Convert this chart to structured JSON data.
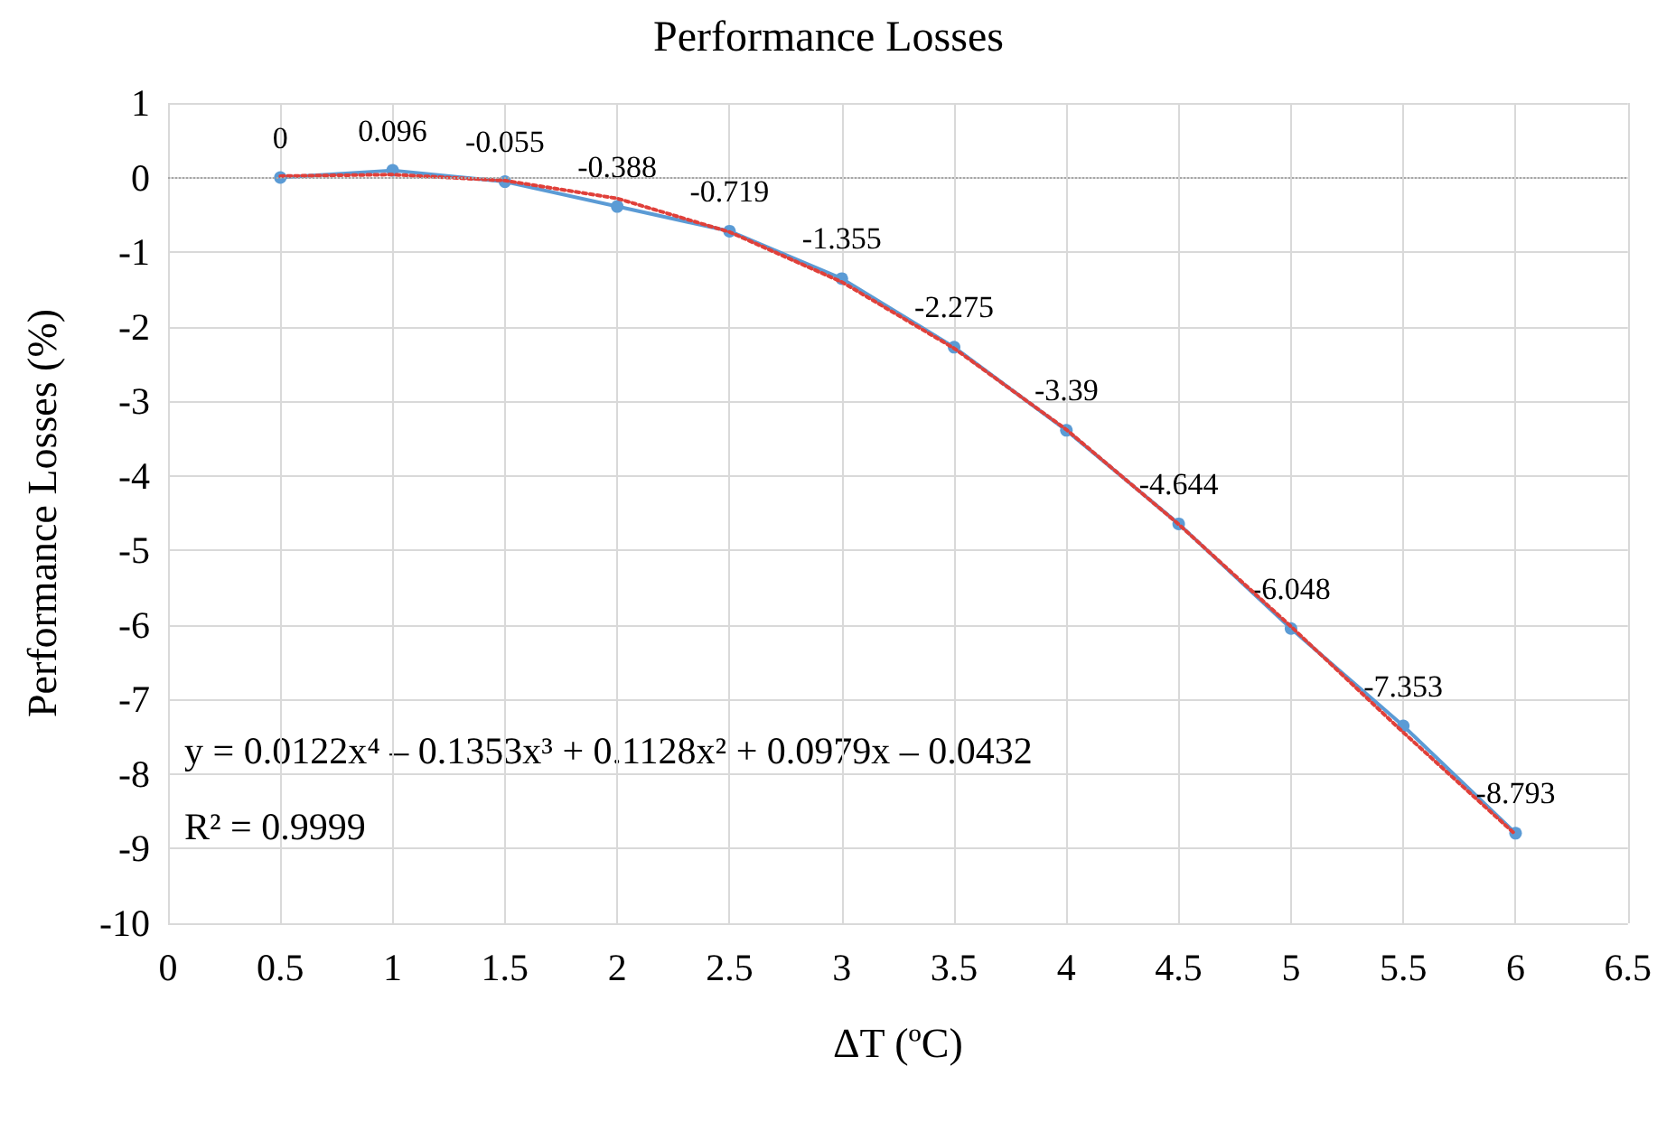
{
  "chart_data": {
    "type": "line",
    "title": "Performance Losses",
    "xlabel": "ΔT (ºC)",
    "ylabel": "Performance Losses (%)",
    "x": [
      0.5,
      1,
      1.5,
      2,
      2.5,
      3,
      3.5,
      4,
      4.5,
      5,
      5.5,
      6
    ],
    "series": [
      {
        "color": "#5b9bd5",
        "values": [
          0,
          0.096,
          -0.055,
          -0.388,
          -0.719,
          -1.355,
          -2.275,
          -3.39,
          -4.644,
          -6.048,
          -7.353,
          -8.793
        ],
        "value_labels": [
          "0",
          "0.096",
          "-0.055",
          "-0.388",
          "-0.719",
          "-1.355",
          "-2.275",
          "-3.39",
          "-4.644",
          "-6.048",
          "-7.353",
          "-8.793"
        ],
        "marker": "circle",
        "line_style": "solid"
      },
      {
        "type": "line",
        "color": "#e0403a",
        "x": [
          0.5,
          1,
          1.5,
          2,
          2.5,
          3,
          3.5,
          4,
          4.5,
          5,
          5.5,
          6
        ],
        "values": [
          0.02,
          0.04,
          -0.04,
          -0.28,
          -0.73,
          -1.4,
          -2.29,
          -3.38,
          -4.65,
          -6.02,
          -7.44,
          -8.81
        ],
        "marker": "none",
        "line_style": "dotted"
      }
    ],
    "xlim": [
      0,
      6.5
    ],
    "xticks": [
      0,
      0.5,
      1,
      1.5,
      2,
      2.5,
      3,
      3.5,
      4,
      4.5,
      5,
      5.5,
      6,
      6.5
    ],
    "ylim": [
      -10,
      1
    ],
    "yticks": [
      -10,
      -9,
      -8,
      -7,
      -6,
      -5,
      -4,
      -3,
      -2,
      -1,
      0,
      1
    ],
    "ref_lines": [
      {
        "axis": "y",
        "value": 0,
        "color": "#a6a6a6",
        "line_style": "dotted"
      }
    ],
    "annotations": [
      "y = 0.0122x⁴ – 0.1353x³ + 0.1128x² + 0.0979x – 0.0432",
      "R² = 0.9999"
    ],
    "grid": true
  }
}
